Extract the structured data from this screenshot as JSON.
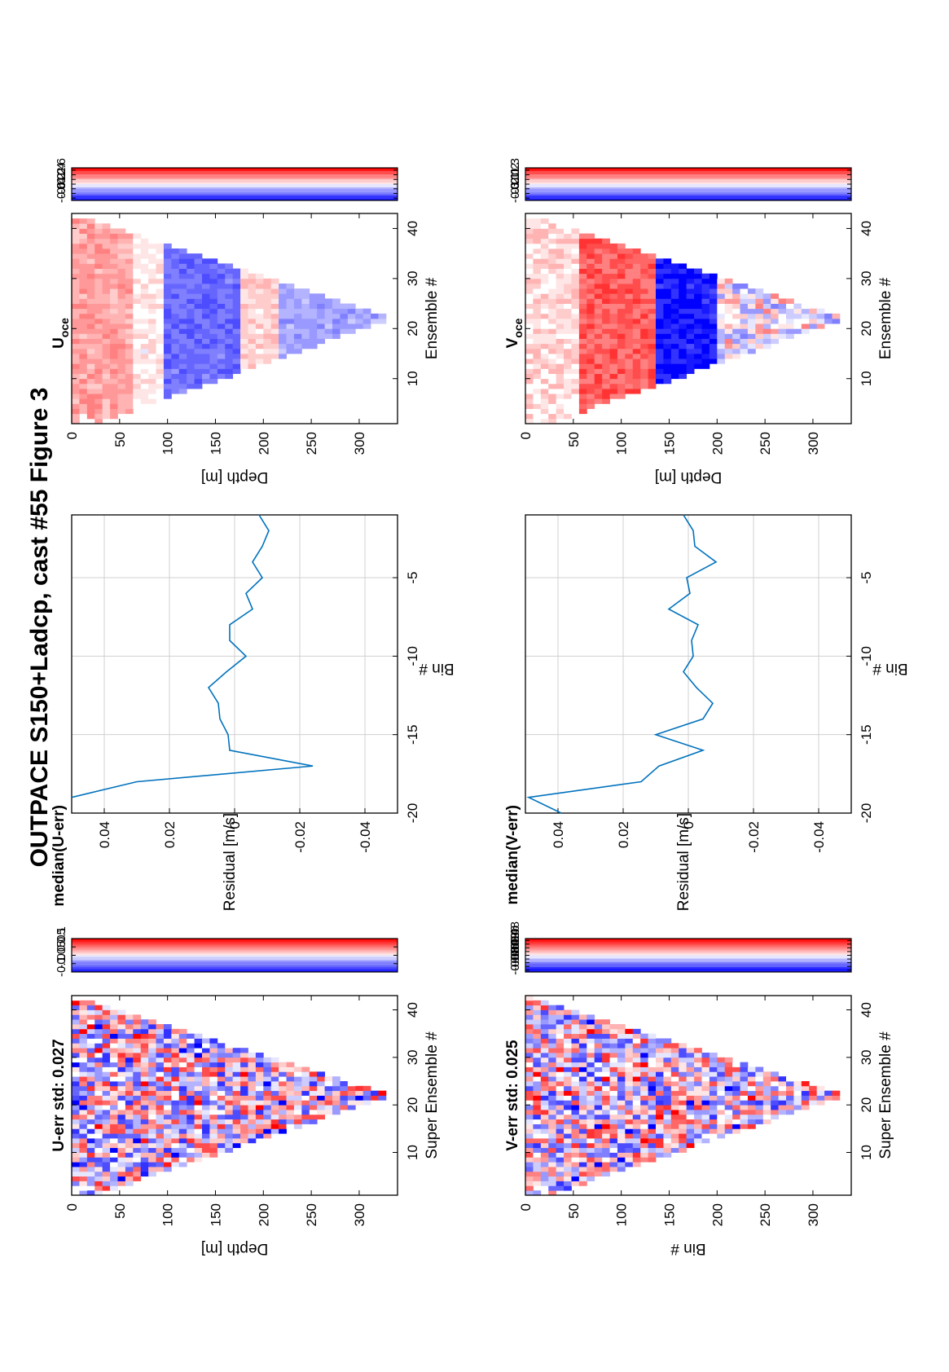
{
  "figure": {
    "title": "OUTPACE S150+Ladcp, cast #55  Figure 3"
  },
  "panels": {
    "u_err": {
      "title": "U-err std: 0.027",
      "xlabel": "Super Ensemble #",
      "ylabel": "Depth [m]",
      "x_ticks": [
        "10",
        "20",
        "30",
        "40"
      ],
      "y_ticks": [
        "0",
        "50",
        "100",
        "150",
        "200",
        "250",
        "300"
      ],
      "colorbar_ticks": [
        "0.1",
        "0.05",
        "0",
        "-0.05",
        "-0.1"
      ]
    },
    "median_u": {
      "title": "median(U-err)",
      "xlabel": "Residual [m/s]",
      "ylabel": "Bin #",
      "x_ticks": [
        "-0.04",
        "-0.02",
        "0",
        "0.02",
        "0.04"
      ],
      "y_ticks": [
        "-5",
        "-10",
        "-15",
        "-20"
      ]
    },
    "u_oce": {
      "title_main": "U",
      "title_sub": "oce",
      "xlabel": "Ensemble #",
      "ylabel": "Depth [m]",
      "x_ticks": [
        "10",
        "20",
        "30",
        "40"
      ],
      "y_ticks": [
        "0",
        "50",
        "100",
        "150",
        "200",
        "250",
        "300"
      ],
      "colorbar_ticks": [
        "0.6",
        "0.4",
        "0.2",
        "0",
        "-0.2",
        "-0.4",
        "-0.6"
      ]
    },
    "v_err": {
      "title": "V-err std: 0.025",
      "xlabel": "Super Ensemble #",
      "ylabel": "Bin #",
      "x_ticks": [
        "10",
        "20",
        "30",
        "40"
      ],
      "y_ticks": [
        "0",
        "50",
        "100",
        "150",
        "200",
        "250",
        "300"
      ],
      "colorbar_ticks": [
        "0.08",
        "0.06",
        "0.04",
        "0.02",
        "0",
        "-0.02",
        "-0.04",
        "-0.06",
        "-0.08"
      ]
    },
    "median_v": {
      "title": "median(V-err)",
      "xlabel": "Residual [m/s]",
      "ylabel": "Bin #",
      "x_ticks": [
        "-0.04",
        "-0.02",
        "0",
        "0.02",
        "0.04"
      ],
      "y_ticks": [
        "-5",
        "-10",
        "-15",
        "-20"
      ]
    },
    "v_oce": {
      "title_main": "V",
      "title_sub": "oce",
      "xlabel": "Ensemble #",
      "ylabel": "Depth [m]",
      "x_ticks": [
        "10",
        "20",
        "30",
        "40"
      ],
      "y_ticks": [
        "0",
        "50",
        "100",
        "150",
        "200",
        "250",
        "300"
      ],
      "colorbar_ticks": [
        "0.3",
        "0.2",
        "0.1",
        "0",
        "-0.1",
        "-0.2",
        "-0.3"
      ]
    }
  },
  "colors": {
    "line": "#0072bd",
    "grid": "#d0d0d0",
    "positive": "#ff0000",
    "negative": "#0000ff"
  },
  "chart_data": [
    {
      "id": "u_err",
      "type": "heatmap",
      "title": "U-err std: 0.027",
      "xlabel": "Super Ensemble #",
      "ylabel": "Depth [m]",
      "xlim": [
        1,
        43
      ],
      "ylim": [
        0,
        340
      ],
      "clim": [
        -0.1,
        0.1
      ],
      "colormap": "red-white-blue",
      "profile_bottom": {
        "x": [
          1,
          22,
          43
        ],
        "depth": [
          20,
          330,
          0
        ]
      }
    },
    {
      "id": "median_u",
      "type": "line",
      "title": "median(U-err)",
      "xlabel": "Residual [m/s]",
      "ylabel": "Bin #",
      "xlim": [
        -0.05,
        0.05
      ],
      "ylim": [
        -20,
        -1
      ],
      "grid": true,
      "series": [
        {
          "x": [
            -0.0075,
            -0.0105,
            -0.0085,
            -0.0055,
            -0.0085,
            -0.0035,
            -0.0055,
            0.0015,
            0.0015,
            -0.0035,
            0.0025,
            0.008,
            0.005,
            0.0045,
            0.002,
            0.0015,
            -0.024,
            0.03,
            0.05
          ],
          "y": [
            -1,
            -2,
            -3,
            -4,
            -5,
            -6,
            -7,
            -8,
            -9,
            -10,
            -11,
            -12,
            -13,
            -14,
            -15,
            -16,
            -17,
            -18,
            -19
          ]
        }
      ]
    },
    {
      "id": "u_oce",
      "type": "heatmap",
      "title": "Uoce",
      "xlabel": "Ensemble #",
      "ylabel": "Depth [m]",
      "xlim": [
        1,
        43
      ],
      "ylim": [
        0,
        340
      ],
      "clim": [
        -0.7,
        0.7
      ],
      "colormap": "red-white-blue",
      "profile_bottom": {
        "x": [
          1,
          22,
          43
        ],
        "depth": [
          20,
          330,
          0
        ]
      }
    },
    {
      "id": "v_err",
      "type": "heatmap",
      "title": "V-err std: 0.025",
      "xlabel": "Super Ensemble #",
      "ylabel": "Bin #",
      "xlim": [
        1,
        43
      ],
      "ylim": [
        0,
        340
      ],
      "clim": [
        -0.09,
        0.09
      ],
      "colormap": "red-white-blue",
      "profile_bottom": {
        "x": [
          1,
          22,
          43
        ],
        "depth": [
          20,
          330,
          0
        ]
      }
    },
    {
      "id": "median_v",
      "type": "line",
      "title": "median(V-err)",
      "xlabel": "Residual [m/s]",
      "ylabel": "Bin #",
      "xlim": [
        -0.05,
        0.05
      ],
      "ylim": [
        -20,
        -1
      ],
      "grid": true,
      "series": [
        {
          "x": [
            0.0015,
            -0.0015,
            -0.002,
            -0.0085,
            0.0005,
            -0.0005,
            0.006,
            -0.003,
            -0.001,
            -0.0015,
            0.0015,
            -0.0025,
            -0.0075,
            -0.0045,
            0.01,
            -0.0045,
            0.009,
            0.0145,
            0.049,
            0.039
          ],
          "y": [
            -1,
            -2,
            -3,
            -4,
            -5,
            -6,
            -7,
            -8,
            -9,
            -10,
            -11,
            -12,
            -13,
            -14,
            -15,
            -16,
            -17,
            -18,
            -19,
            -20
          ]
        }
      ]
    },
    {
      "id": "v_oce",
      "type": "heatmap",
      "title": "Voce",
      "xlabel": "Ensemble #",
      "ylabel": "Depth [m]",
      "xlim": [
        1,
        43
      ],
      "ylim": [
        0,
        340
      ],
      "clim": [
        -0.35,
        0.35
      ],
      "colormap": "red-white-blue",
      "profile_bottom": {
        "x": [
          1,
          22,
          43
        ],
        "depth": [
          20,
          330,
          0
        ]
      }
    }
  ]
}
